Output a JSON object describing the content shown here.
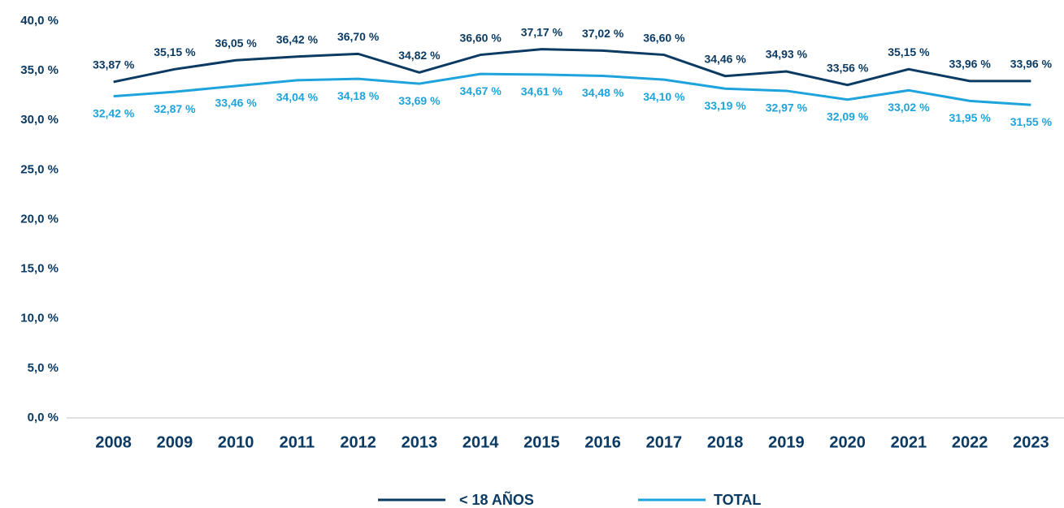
{
  "chart_data": {
    "type": "line",
    "categories": [
      "2008",
      "2009",
      "2010",
      "2011",
      "2012",
      "2013",
      "2014",
      "2015",
      "2016",
      "2017",
      "2018",
      "2019",
      "2020",
      "2021",
      "2022",
      "2023"
    ],
    "series": [
      {
        "name": "< 18 AÑOS",
        "color": "#0b3a63",
        "values": [
          33.87,
          35.15,
          36.05,
          36.42,
          36.7,
          34.82,
          36.6,
          37.17,
          37.02,
          36.6,
          34.46,
          34.93,
          33.56,
          35.15,
          33.96,
          33.96
        ],
        "value_labels": [
          "33,87 %",
          "35,15 %",
          "36,05 %",
          "36,42 %",
          "36,70 %",
          "34,82 %",
          "36,60 %",
          "37,17 %",
          "37,02 %",
          "36,60 %",
          "34,46 %",
          "34,93 %",
          "33,56 %",
          "35,15 %",
          "33,96 %",
          "33,96 %"
        ]
      },
      {
        "name": "TOTAL",
        "color": "#1ea3dc",
        "values": [
          32.42,
          32.87,
          33.46,
          34.04,
          34.18,
          33.69,
          34.67,
          34.61,
          34.48,
          34.1,
          33.19,
          32.97,
          32.09,
          33.02,
          31.95,
          31.55
        ],
        "value_labels": [
          "32,42 %",
          "32,87 %",
          "33,46 %",
          "34,04 %",
          "34,18 %",
          "33,69 %",
          "34,67 %",
          "34,61 %",
          "34,48 %",
          "34,10 %",
          "33,19 %",
          "32,97 %",
          "32,09 %",
          "33,02 %",
          "31,95 %",
          "31,55 %"
        ]
      }
    ],
    "ylim": [
      0,
      40
    ],
    "yticks": [
      {
        "value": 0,
        "label": "0,0 %"
      },
      {
        "value": 5,
        "label": "5,0 %"
      },
      {
        "value": 10,
        "label": "10,0 %"
      },
      {
        "value": 15,
        "label": "15,0 %"
      },
      {
        "value": 20,
        "label": "20,0 %"
      },
      {
        "value": 25,
        "label": "25,0 %"
      },
      {
        "value": 30,
        "label": "30,0 %"
      },
      {
        "value": 35,
        "label": "35,0 %"
      },
      {
        "value": 40,
        "label": "40,0 %"
      }
    ],
    "grid": false,
    "legend": "bottom"
  }
}
